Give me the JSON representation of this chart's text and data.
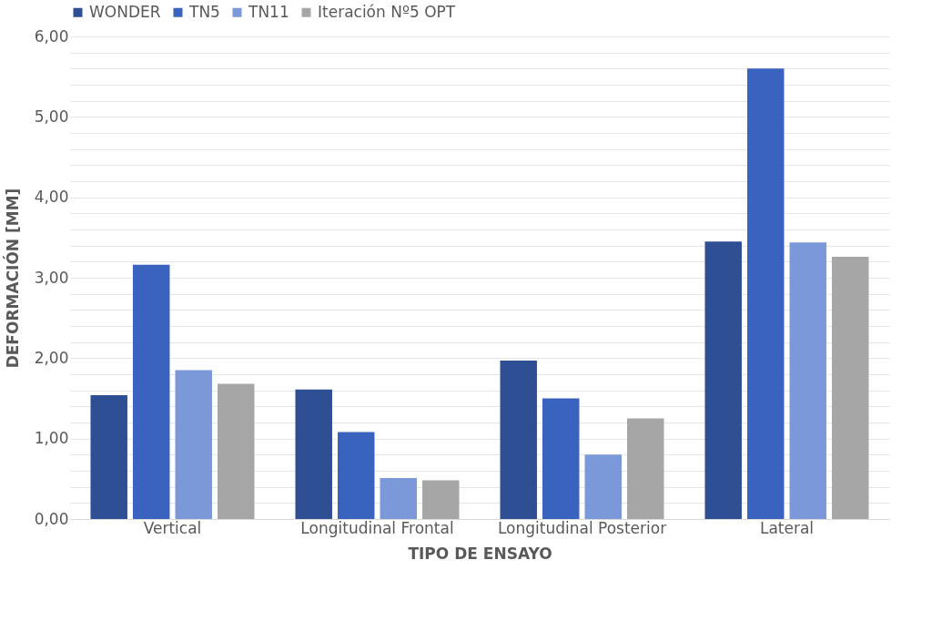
{
  "chart_data": {
    "type": "bar",
    "xlabel": "TIPO DE ENSAYO",
    "ylabel": "DEFORMACIÓN [MM]",
    "categories": [
      "Vertical",
      "Longitudinal Frontal",
      "Longitudinal Posterior",
      "Lateral"
    ],
    "series": [
      {
        "name": "WONDER",
        "color": "#2f4f94",
        "values": [
          1.54,
          1.61,
          1.97,
          3.45
        ]
      },
      {
        "name": "TN5",
        "color": "#3a63c0",
        "values": [
          3.16,
          1.08,
          1.5,
          5.6
        ]
      },
      {
        "name": "TN11",
        "color": "#7b98d8",
        "values": [
          1.85,
          0.51,
          0.8,
          3.44
        ]
      },
      {
        "name": "Iteración Nº5 OPT",
        "color": "#a6a6a6",
        "values": [
          1.68,
          0.48,
          1.25,
          3.26
        ]
      }
    ],
    "ylim": [
      0,
      6
    ],
    "yticks": [
      {
        "value": 0,
        "label": "0,00"
      },
      {
        "value": 0.2,
        "label": null
      },
      {
        "value": 0.4,
        "label": null
      },
      {
        "value": 0.6,
        "label": null
      },
      {
        "value": 0.8,
        "label": null
      },
      {
        "value": 1,
        "label": "1,00"
      },
      {
        "value": 1.2,
        "label": null
      },
      {
        "value": 1.4,
        "label": null
      },
      {
        "value": 1.6,
        "label": null
      },
      {
        "value": 1.8,
        "label": null
      },
      {
        "value": 2,
        "label": "2,00"
      },
      {
        "value": 2.2,
        "label": null
      },
      {
        "value": 2.4,
        "label": null
      },
      {
        "value": 2.6,
        "label": null
      },
      {
        "value": 2.8,
        "label": null
      },
      {
        "value": 3,
        "label": "3,00"
      },
      {
        "value": 3.2,
        "label": null
      },
      {
        "value": 3.4,
        "label": null
      },
      {
        "value": 3.6,
        "label": null
      },
      {
        "value": 3.8,
        "label": null
      },
      {
        "value": 4,
        "label": "4,00"
      },
      {
        "value": 4.2,
        "label": null
      },
      {
        "value": 4.4,
        "label": null
      },
      {
        "value": 4.6,
        "label": null
      },
      {
        "value": 4.8,
        "label": null
      },
      {
        "value": 5,
        "label": "5,00"
      },
      {
        "value": 5.2,
        "label": null
      },
      {
        "value": 5.4,
        "label": null
      },
      {
        "value": 5.6,
        "label": null
      },
      {
        "value": 5.8,
        "label": null
      },
      {
        "value": 6,
        "label": "6,00"
      }
    ],
    "grid": true,
    "legend": "top"
  }
}
